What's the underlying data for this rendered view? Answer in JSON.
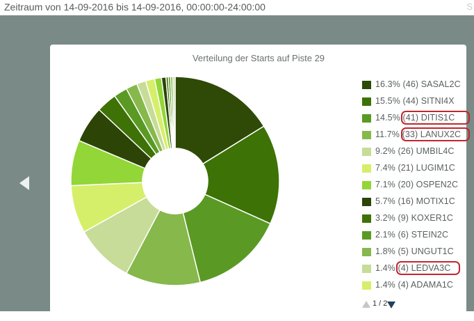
{
  "header": {
    "title": "Zeitraum von 14-09-2016 bis 14-09-2016, 00:00:00-24:00:00",
    "edge_text": "S"
  },
  "chart_data": {
    "type": "pie",
    "donut": true,
    "title": "Verteilung der Starts auf Piste 29",
    "legend_position": "right",
    "slices": [
      {
        "label": "SASAL2C",
        "value": 46,
        "percent": 16.3,
        "text": "16.3% (46) SASAL2C",
        "color": "#2e4a06",
        "legend": true
      },
      {
        "label": "SITNI4X",
        "value": 44,
        "percent": 15.5,
        "text": "15.5% (44) SITNI4X",
        "color": "#3d7206",
        "legend": true
      },
      {
        "label": "DITIS1C",
        "value": 41,
        "percent": 14.5,
        "text": "14.5% (41) DITIS1C",
        "color": "#5a9a24",
        "legend": true,
        "highlighted": true
      },
      {
        "label": "LANUX2C",
        "value": 33,
        "percent": 11.7,
        "text": "11.7% (33) LANUX2C",
        "color": "#86b84c",
        "legend": true,
        "highlighted": true
      },
      {
        "label": "UMBIL4C",
        "value": 26,
        "percent": 9.2,
        "text": "9.2% (26) UMBIL4C",
        "color": "#c7dc98",
        "legend": true
      },
      {
        "label": "LUGIM1C",
        "value": 21,
        "percent": 7.4,
        "text": "7.4% (21) LUGIM1C",
        "color": "#d6ef6a",
        "legend": true
      },
      {
        "label": "OSPEN2C",
        "value": 20,
        "percent": 7.1,
        "text": "7.1% (20) OSPEN2C",
        "color": "#92d637",
        "legend": true
      },
      {
        "label": "MOTIX1C",
        "value": 16,
        "percent": 5.7,
        "text": "5.7% (16) MOTIX1C",
        "color": "#2c4406",
        "legend": true
      },
      {
        "label": "KOXER1C",
        "value": 9,
        "percent": 3.2,
        "text": "3.2% (9) KOXER1C",
        "color": "#3e7206",
        "legend": true
      },
      {
        "label": "STEIN2C",
        "value": 6,
        "percent": 2.1,
        "text": "2.1% (6) STEIN2C",
        "color": "#5a9a24",
        "legend": true
      },
      {
        "label": "UNGUT1C",
        "value": 5,
        "percent": 1.8,
        "text": "1.8% (5) UNGUT1C",
        "color": "#86b84c",
        "legend": true
      },
      {
        "label": "LEDVA3C",
        "value": 4,
        "percent": 1.4,
        "text": "1.4% (4) LEDVA3C",
        "color": "#c7dc98",
        "legend": true,
        "highlighted": true
      },
      {
        "label": "ADAMA1C",
        "value": 4,
        "percent": 1.4,
        "text": "1.4% (4) ADAMA1C",
        "color": "#d6ef6a",
        "legend": true
      },
      {
        "value": 3,
        "color": "#92d637",
        "legend": false
      },
      {
        "value": 2,
        "color": "#2c4406",
        "legend": false
      },
      {
        "value": 1,
        "color": "#3e7206",
        "legend": false
      },
      {
        "value": 1,
        "color": "#5a9a24",
        "legend": false
      },
      {
        "value": 1,
        "color": "#86b84c",
        "legend": false
      },
      {
        "value": 1,
        "color": "#c7dc98",
        "legend": false
      }
    ]
  },
  "pager": {
    "text": "1 / 2"
  },
  "nav": {
    "prev_icon": "triangle-left-icon"
  }
}
